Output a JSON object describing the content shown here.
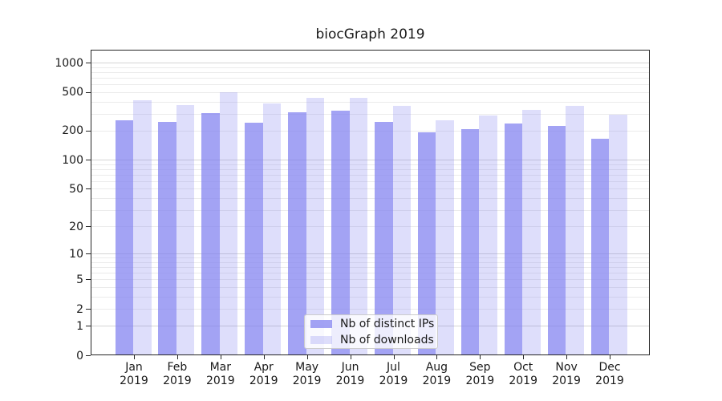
{
  "chart_data": {
    "type": "bar",
    "title": "biocGraph 2019",
    "categories": [
      "Jan",
      "Feb",
      "Mar",
      "Apr",
      "May",
      "Jun",
      "Jul",
      "Aug",
      "Sep",
      "Oct",
      "Nov",
      "Dec"
    ],
    "category_year": "2019",
    "series": [
      {
        "name": "Nb of distinct IPs",
        "color": "rgba(128,128,240,0.72)",
        "values": [
          255,
          247,
          305,
          242,
          310,
          322,
          247,
          193,
          208,
          238,
          225,
          166
        ]
      },
      {
        "name": "Nb of downloads",
        "color": "rgba(128,128,240,0.26)",
        "values": [
          411,
          368,
          500,
          381,
          437,
          435,
          361,
          256,
          287,
          328,
          362,
          293
        ]
      }
    ],
    "yscale": "log1p",
    "yticks": [
      1000,
      500,
      200,
      100,
      50,
      20,
      10,
      5,
      2,
      1,
      0
    ],
    "ylim": [
      0,
      1358
    ],
    "xlabel": "",
    "ylabel": "",
    "grid": true,
    "legend_position": "lower center",
    "grid_major_color": "#d4d4d4",
    "grid_minor_color": "#ebebeb",
    "axis_color": "#262626"
  }
}
